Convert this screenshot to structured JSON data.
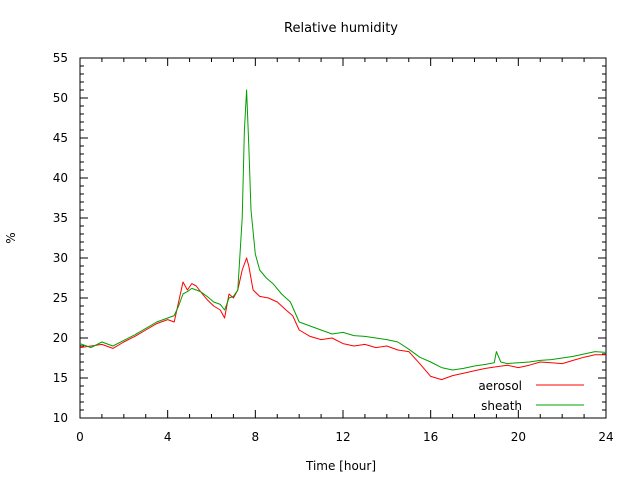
{
  "chart_data": {
    "type": "line",
    "title": "Relative humidity",
    "xlabel": "Time [hour]",
    "ylabel": "%",
    "xlim": [
      0,
      24
    ],
    "ylim": [
      10,
      55
    ],
    "xticks": [
      0,
      4,
      8,
      12,
      16,
      20,
      24
    ],
    "yticks": [
      10,
      15,
      20,
      25,
      30,
      35,
      40,
      45,
      50,
      55
    ],
    "grid": false,
    "legend_position": "bottom-right",
    "series": [
      {
        "name": "aerosol",
        "color": "#ff0000",
        "x": [
          0,
          0.5,
          1,
          1.5,
          2,
          2.5,
          3,
          3.5,
          4,
          4.3,
          4.5,
          4.7,
          4.9,
          5.1,
          5.3,
          5.5,
          5.8,
          6.1,
          6.4,
          6.6,
          6.8,
          7.0,
          7.2,
          7.4,
          7.6,
          7.7,
          7.9,
          8.2,
          8.6,
          9.0,
          9.4,
          9.7,
          10.0,
          10.5,
          11,
          11.5,
          12,
          12.5,
          13,
          13.5,
          14,
          14.5,
          15,
          15.5,
          16,
          16.5,
          17,
          17.5,
          18,
          18.5,
          19,
          19.5,
          20,
          20.5,
          21,
          21.5,
          22,
          22.5,
          23,
          23.5,
          24
        ],
        "values": [
          18.8,
          19.0,
          19.2,
          18.7,
          19.5,
          20.2,
          21.0,
          21.8,
          22.3,
          22.0,
          24.5,
          27.0,
          26.0,
          26.8,
          26.5,
          25.8,
          24.8,
          24.0,
          23.5,
          22.5,
          25.5,
          25.0,
          26.0,
          28.5,
          30.0,
          29.0,
          26.0,
          25.2,
          25.0,
          24.5,
          23.5,
          22.8,
          21.0,
          20.2,
          19.8,
          20.0,
          19.3,
          19.0,
          19.2,
          18.8,
          19.0,
          18.5,
          18.3,
          16.8,
          15.2,
          14.8,
          15.3,
          15.6,
          15.9,
          16.2,
          16.4,
          16.6,
          16.3,
          16.6,
          17.0,
          16.9,
          16.8,
          17.2,
          17.6,
          17.9,
          17.9
        ]
      },
      {
        "name": "sheath",
        "color": "#00a000",
        "x": [
          0,
          0.5,
          1,
          1.5,
          2,
          2.5,
          3,
          3.5,
          4,
          4.3,
          4.5,
          4.7,
          4.9,
          5.1,
          5.3,
          5.5,
          5.8,
          6.1,
          6.4,
          6.6,
          6.8,
          7.0,
          7.2,
          7.4,
          7.5,
          7.6,
          7.7,
          7.8,
          8.0,
          8.2,
          8.5,
          8.8,
          9.2,
          9.6,
          10.0,
          10.5,
          11,
          11.5,
          12,
          12.5,
          13,
          13.5,
          14,
          14.5,
          15,
          15.5,
          16,
          16.5,
          17,
          17.5,
          18,
          18.5,
          18.9,
          19.0,
          19.2,
          19.5,
          20,
          20.5,
          21,
          21.5,
          22,
          22.5,
          23,
          23.5,
          24
        ],
        "values": [
          19.3,
          18.8,
          19.5,
          19.0,
          19.7,
          20.4,
          21.2,
          22.0,
          22.5,
          22.8,
          24.0,
          25.5,
          25.8,
          26.2,
          26.0,
          25.8,
          25.2,
          24.5,
          24.2,
          23.5,
          25.0,
          25.2,
          26.0,
          35.0,
          46.0,
          51.0,
          44.0,
          36.0,
          30.5,
          28.5,
          27.5,
          26.8,
          25.5,
          24.5,
          22.0,
          21.5,
          21.0,
          20.5,
          20.7,
          20.3,
          20.2,
          20.0,
          19.8,
          19.5,
          18.6,
          17.6,
          17.0,
          16.3,
          16.0,
          16.2,
          16.5,
          16.7,
          16.9,
          18.3,
          17.0,
          16.8,
          16.9,
          17.0,
          17.2,
          17.3,
          17.5,
          17.7,
          18.0,
          18.3,
          18.2
        ]
      }
    ]
  }
}
